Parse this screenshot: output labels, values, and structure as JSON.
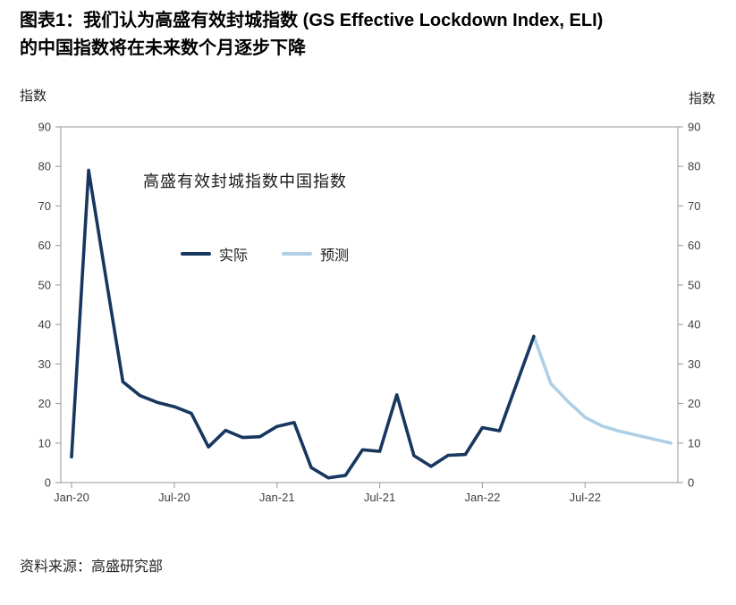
{
  "header": {
    "title_line1": "图表1：我们认为高盛有效封城指数 (GS Effective Lockdown Index, ELI)",
    "title_line2": "的中国指数将在未来数个月逐步下降"
  },
  "axes": {
    "left_unit_label": "指数",
    "right_unit_label": "指数"
  },
  "annotation": "高盛有效封城指数中国指数",
  "legend": [
    {
      "label": "实际"
    },
    {
      "label": "预测"
    }
  ],
  "footer": {
    "source": "资料来源：高盛研究部"
  },
  "colors": {
    "actual_line": "#17375e",
    "forecast_line": "#aecfe6",
    "axis_line": "#a6a6a6",
    "tick_text": "#404040"
  },
  "chart_data": {
    "type": "line",
    "title": "高盛有效封城指数中国指数",
    "xlabel": "",
    "ylabel_left": "指数",
    "ylabel_right": "指数",
    "ylim": [
      0,
      90
    ],
    "yticks": [
      0,
      10,
      20,
      30,
      40,
      50,
      60,
      70,
      80,
      90
    ],
    "grid": false,
    "legend_position": "inside-upper-left",
    "x": [
      "Jan-20",
      "Feb-20",
      "Mar-20",
      "Apr-20",
      "May-20",
      "Jun-20",
      "Jul-20",
      "Aug-20",
      "Sep-20",
      "Oct-20",
      "Nov-20",
      "Dec-20",
      "Jan-21",
      "Feb-21",
      "Mar-21",
      "Apr-21",
      "May-21",
      "Jun-21",
      "Jul-21",
      "Aug-21",
      "Sep-21",
      "Oct-21",
      "Nov-21",
      "Dec-21",
      "Jan-22",
      "Feb-22",
      "Mar-22",
      "Apr-22",
      "May-22",
      "Jun-22",
      "Jul-22",
      "Aug-22",
      "Sep-22",
      "Oct-22",
      "Nov-22",
      "Dec-22"
    ],
    "xtick_labels": [
      "Jan-20",
      "Jul-20",
      "Jan-21",
      "Jul-21",
      "Jan-22",
      "Jul-22"
    ],
    "series": [
      {
        "name": "实际",
        "key": "actual",
        "color": "#17375e",
        "values": [
          6.5,
          79,
          52,
          25.5,
          22,
          20.3,
          19.2,
          17.5,
          9,
          13.2,
          11.4,
          11.6,
          14.2,
          15.2,
          3.8,
          1.2,
          1.8,
          8.3,
          7.9,
          22.2,
          6.8,
          4.1,
          6.9,
          7.1,
          13.9,
          13.1,
          25,
          37,
          null,
          null,
          null,
          null,
          null,
          null,
          null,
          null
        ]
      },
      {
        "name": "预测",
        "key": "forecast",
        "color": "#aecfe6",
        "values": [
          null,
          null,
          null,
          null,
          null,
          null,
          null,
          null,
          null,
          null,
          null,
          null,
          null,
          null,
          null,
          null,
          null,
          null,
          null,
          null,
          null,
          null,
          null,
          null,
          null,
          null,
          null,
          37,
          25,
          20.5,
          16.5,
          14.3,
          13,
          12,
          11,
          10
        ]
      }
    ]
  }
}
